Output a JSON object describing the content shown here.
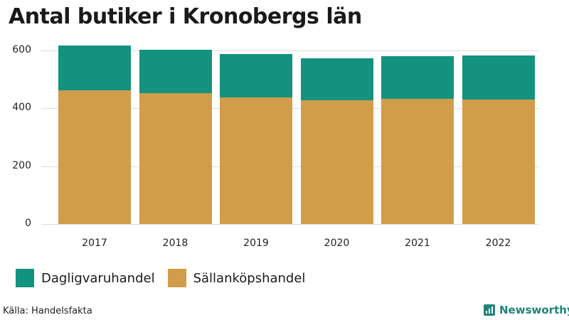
{
  "title": "Antal butiker i Kronobergs län",
  "colors": {
    "dagligvaruhandel": "#13927F",
    "sallankopshandel": "#D19D4A",
    "grid": "#DCDCDC",
    "brand": "#1E8478"
  },
  "legend": [
    {
      "label": "Dagligvaruhandel",
      "color": "#13927F"
    },
    {
      "label": "Sällanköpshandel",
      "color": "#D19D4A"
    }
  ],
  "source": "Källa: Handelsfakta",
  "brand": "Newsworthy",
  "chart_data": {
    "type": "bar",
    "stacked": true,
    "title": "Antal butiker i Kronobergs län",
    "xlabel": "",
    "ylabel": "",
    "categories": [
      "2017",
      "2018",
      "2019",
      "2020",
      "2021",
      "2022"
    ],
    "series": [
      {
        "name": "Sällanköpshandel",
        "color": "#D19D4A",
        "values": [
          462,
          451,
          437,
          426,
          431,
          429
        ]
      },
      {
        "name": "Dagligvaruhandel",
        "color": "#13927F",
        "values": [
          155,
          150,
          149,
          147,
          148,
          152
        ]
      }
    ],
    "yticks": [
      0,
      200,
      400,
      600
    ],
    "ylim": [
      0,
      640
    ],
    "grid": true,
    "legend_position": "bottom"
  }
}
